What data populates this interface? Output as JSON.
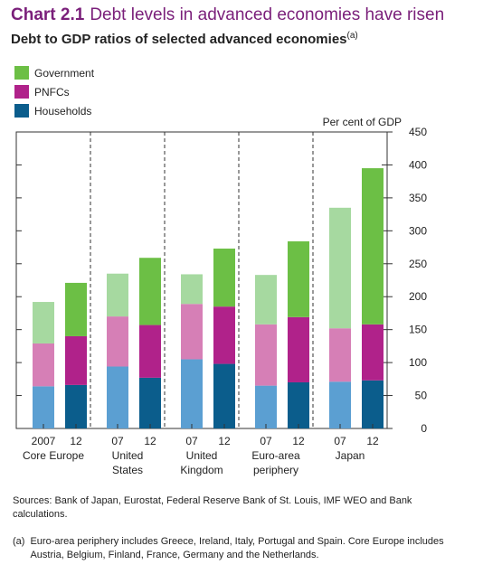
{
  "header": {
    "chart_number": "Chart 2.1",
    "title": "Debt levels in advanced economies have risen",
    "subtitle": "Debt to GDP ratios of selected advanced economies",
    "subtitle_note": "(a)"
  },
  "colors": {
    "title": "#7a1f7a",
    "gov_2007": "#a6d9a0",
    "gov_2012": "#6cbf45",
    "pnfc_2007": "#d67fb6",
    "pnfc_2012": "#b0228a",
    "hh_2007": "#5b9fd2",
    "hh_2012": "#0b5d8c"
  },
  "chart_data": {
    "type": "bar",
    "stacked": true,
    "unit_label": "Per cent of GDP",
    "ylim": [
      0,
      450
    ],
    "yticks": [
      0,
      50,
      100,
      150,
      200,
      250,
      300,
      350,
      400,
      450
    ],
    "y_axis_side": "right",
    "grid": false,
    "legend_placement": "top-left",
    "groups": [
      "Core Europe",
      "United States",
      "United Kingdom",
      "Euro-area periphery",
      "Japan"
    ],
    "group_labels": [
      [
        "Core Europe"
      ],
      [
        "United",
        "States"
      ],
      [
        "United",
        "Kingdom"
      ],
      [
        "Euro-area",
        "periphery"
      ],
      [
        "Japan"
      ]
    ],
    "categories": [
      "2007 Core Europe",
      "2012 Core Europe",
      "2007 United States",
      "2012 United States",
      "2007 United Kingdom",
      "2012 United Kingdom",
      "2007 Euro-area periphery",
      "2012 Euro-area periphery",
      "2007 Japan",
      "2012 Japan"
    ],
    "bar_tick_labels": [
      "2007",
      "12",
      "07",
      "12",
      "07",
      "12",
      "07",
      "12",
      "07",
      "12"
    ],
    "series": [
      {
        "name": "Households",
        "values": [
          64,
          66,
          94,
          77,
          105,
          98,
          65,
          70,
          71,
          73
        ]
      },
      {
        "name": "PNFCs",
        "values": [
          65,
          74,
          76,
          80,
          84,
          87,
          93,
          99,
          81,
          85
        ]
      },
      {
        "name": "Government",
        "values": [
          63,
          81,
          65,
          102,
          45,
          88,
          75,
          115,
          183,
          237
        ]
      }
    ]
  },
  "legend": {
    "items": [
      {
        "label": "Government"
      },
      {
        "label": "PNFCs"
      },
      {
        "label": "Households"
      }
    ]
  },
  "notes": {
    "sources": "Sources: Bank of Japan, Eurostat, Federal Reserve Bank of St. Louis, IMF WEO and Bank calculations.",
    "footnote_mark": "(a)",
    "footnote_text": "Euro-area periphery includes Greece, Ireland, Italy, Portugal and Spain. Core Europe includes Austria, Belgium, Finland, France, Germany and the Netherlands."
  }
}
